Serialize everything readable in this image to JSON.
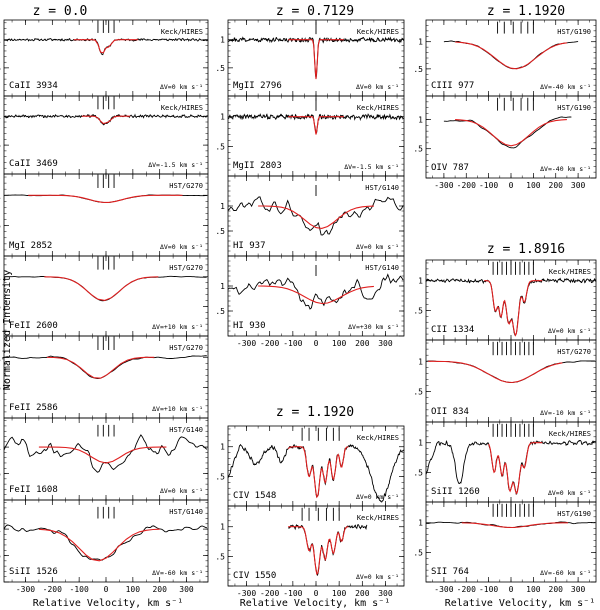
{
  "figure": {
    "ylabel": "Normalized Intensity",
    "xlabel": "Relative Velocity, km s⁻¹"
  },
  "colors": {
    "data": "#000000",
    "model": "#e02020",
    "axes": "#000000",
    "background": "#ffffff"
  },
  "chart_data": {
    "type": "line",
    "description_units": {
      "x": "km/s",
      "y": "normalized flux"
    },
    "columns": [
      {
        "redshift_label": "z = 0.0",
        "xlim": [
          -380,
          380
        ],
        "xticks": [
          -300,
          -200,
          -100,
          0,
          100,
          200,
          300
        ],
        "panels": [
          {
            "ion": "CaII 3934",
            "instrument": "Keck/HIRES",
            "dv": "ΔV=0 km s⁻¹",
            "ylim": [
              0,
              1.35
            ],
            "yticks": [
              0,
              0.5,
              1
            ],
            "ticks": [
              -30,
              -10,
              10,
              30
            ],
            "tick_y": 1.22,
            "noise": 0.025,
            "noise_scale": 4,
            "seed": 11,
            "abs": [
              [
                -15,
                0.25,
                10
              ],
              [
                10,
                0.12,
                10
              ]
            ],
            "model": [
              -120,
              120
            ],
            "model_step": 10
          },
          {
            "ion": "CaII 3469",
            "instrument": "Keck/HIRES",
            "dv": "ΔV=-1.5 km s⁻¹",
            "ylim": [
              0,
              1.35
            ],
            "yticks": [
              0,
              0.5,
              1
            ],
            "ticks": [
              -30,
              -10,
              10,
              30
            ],
            "tick_y": 1.22,
            "noise": 0.03,
            "noise_scale": 4,
            "seed": 12,
            "abs": [
              [
                -10,
                0.12,
                12
              ],
              [
                12,
                0.07,
                10
              ]
            ],
            "model": [
              -90,
              90
            ],
            "model_step": 10
          },
          {
            "ion": "MgI 2852",
            "instrument": "HST/G270",
            "dv": "ΔV=0 km s⁻¹",
            "ylim": [
              0,
              1.35
            ],
            "yticks": [
              0,
              0.5,
              1
            ],
            "ticks": [
              -30,
              -10,
              10,
              30
            ],
            "tick_y": 1.22,
            "noise": 0.01,
            "noise_scale": 40,
            "seed": 13,
            "abs": [
              [
                0,
                0.12,
                60
              ]
            ],
            "model": [
              -290,
              300
            ],
            "model_step": 25
          },
          {
            "ion": "FeII 2600",
            "instrument": "HST/G270",
            "dv": "ΔV=+10 km s⁻¹",
            "ylim": [
              0,
              1.35
            ],
            "yticks": [
              0,
              0.5,
              1
            ],
            "ticks": [
              -30,
              -10,
              10,
              30
            ],
            "tick_y": 1.22,
            "noise": 0.01,
            "noise_scale": 40,
            "seed": 14,
            "abs": [
              [
                -10,
                0.4,
                60
              ]
            ],
            "model": [
              -230,
              200
            ],
            "model_step": 25
          },
          {
            "ion": "FeII 2586",
            "instrument": "HST/G270",
            "dv": "ΔV=+10 km s⁻¹",
            "ylim": [
              0,
              1.35
            ],
            "yticks": [
              0,
              0.5,
              1
            ],
            "ticks": [
              -30,
              -10,
              10,
              30
            ],
            "tick_y": 1.22,
            "noise": 0.03,
            "noise_scale": 40,
            "seed": 15,
            "abs": [
              [
                -30,
                0.35,
                55
              ]
            ],
            "model": [
              -220,
              200
            ],
            "model_step": 25
          },
          {
            "ion": "FeII 1608",
            "instrument": "HST/G140",
            "dv": "ΔV=0 km s⁻¹",
            "ylim": [
              0,
              1.55
            ],
            "yticks": [
              0,
              0.5,
              1
            ],
            "ticks": [
              -30,
              -10,
              10,
              30
            ],
            "tick_y": 1.3,
            "noise": 0.3,
            "noise_scale": 35,
            "seed": 16,
            "abs": [
              [
                0,
                0.3,
                55
              ]
            ],
            "model": [
              -250,
              230
            ],
            "model_step": 25
          },
          {
            "ion": "SiII 1526",
            "instrument": "HST/G140",
            "dv": "ΔV=-60 km s⁻¹",
            "ylim": [
              0,
              1.55
            ],
            "yticks": [
              0,
              0.5,
              1
            ],
            "ticks": [
              -30,
              -10,
              10,
              30
            ],
            "tick_y": 1.3,
            "noise": 0.12,
            "noise_scale": 40,
            "seed": 17,
            "abs": [
              [
                -30,
                0.6,
                70
              ]
            ],
            "model": [
              -250,
              200
            ],
            "model_step": 25
          }
        ]
      },
      {
        "redshift_label": "z = 0.7129",
        "xlim": [
          -380,
          380
        ],
        "xticks": [
          -300,
          -200,
          -100,
          0,
          100,
          200,
          300
        ],
        "panels": [
          {
            "ion": "MgII 2796",
            "instrument": "Keck/HIRES",
            "dv": "ΔV=0 km s⁻¹",
            "ylim": [
              0,
              1.35
            ],
            "yticks": [
              0,
              0.5,
              1
            ],
            "ticks": [
              0
            ],
            "tick_y": 1.2,
            "noise": 0.05,
            "noise_scale": 4,
            "seed": 21,
            "abs": [
              [
                0,
                0.7,
                5
              ]
            ],
            "model": [
              -120,
              120
            ],
            "model_step": 5
          },
          {
            "ion": "MgII 2803",
            "instrument": "Keck/HIRES",
            "dv": "ΔV=-1.5 km s⁻¹",
            "ylim": [
              0,
              1.35
            ],
            "yticks": [
              0,
              0.5,
              1
            ],
            "ticks": [
              0
            ],
            "tick_y": 1.2,
            "noise": 0.05,
            "noise_scale": 4,
            "seed": 22,
            "abs": [
              [
                0,
                0.3,
                5
              ]
            ],
            "model": [
              -120,
              120
            ],
            "model_step": 5
          },
          {
            "ion": "HI 937",
            "instrument": "HST/G140",
            "dv": "ΔV=0 km s⁻¹",
            "ylim": [
              0,
              1.6
            ],
            "yticks": [
              0,
              0.5,
              1
            ],
            "ticks": [
              0
            ],
            "tick_y": 1.3,
            "noise": 0.28,
            "noise_scale": 30,
            "seed": 23,
            "abs": [
              [
                20,
                0.45,
                70
              ]
            ],
            "model": [
              -250,
              250
            ],
            "model_step": 25
          },
          {
            "ion": "HI 930",
            "instrument": "HST/G140",
            "dv": "ΔV=+30 km s⁻¹",
            "ylim": [
              0,
              1.6
            ],
            "yticks": [
              0,
              0.5,
              1
            ],
            "ticks": [
              0
            ],
            "tick_y": 1.3,
            "noise": 0.28,
            "noise_scale": 30,
            "seed": 24,
            "abs": [
              [
                30,
                0.35,
                80
              ]
            ],
            "model": [
              -250,
              250
            ],
            "model_step": 25
          }
        ]
      },
      {
        "redshift_label": "z = 1.1920",
        "xlim": [
          -380,
          380
        ],
        "xticks": [
          -300,
          -200,
          -100,
          0,
          100,
          200,
          300
        ],
        "panels": [
          {
            "ion": "CIV 1548",
            "instrument": "Keck/HIRES",
            "dv": "ΔV=0 km s⁻¹",
            "ylim": [
              0,
              1.35
            ],
            "yticks": [
              0,
              0.5,
              1
            ],
            "ticks": [
              -60,
              -30,
              10,
              45,
              75,
              100
            ],
            "tick_y": 1.2,
            "noise": 0.05,
            "noise_scale": 5,
            "seed": 31,
            "edge": "left",
            "abs": [
              [
                -260,
                0.3,
                25
              ],
              [
                -150,
                0.25,
                15
              ],
              [
                -30,
                0.5,
                10
              ],
              [
                5,
                0.85,
                12
              ],
              [
                40,
                0.6,
                10
              ],
              [
                75,
                0.55,
                10
              ],
              [
                110,
                0.35,
                8
              ],
              [
                280,
                0.9,
                40
              ]
            ],
            "model": [
              -120,
              140
            ],
            "model_step": 4
          },
          {
            "ion": "CIV 1550",
            "instrument": "Keck/HIRES",
            "dv": "ΔV=0 km s⁻¹",
            "ylim": [
              0,
              1.35
            ],
            "yticks": [
              0,
              0.5,
              1
            ],
            "ticks": [
              -60,
              -30,
              10,
              45,
              75,
              100
            ],
            "tick_y": 1.2,
            "noise": 0.05,
            "noise_scale": 5,
            "seed": 32,
            "range": [
              -120,
              220
            ],
            "abs": [
              [
                -30,
                0.4,
                10
              ],
              [
                5,
                0.8,
                12
              ],
              [
                40,
                0.55,
                10
              ],
              [
                75,
                0.45,
                10
              ],
              [
                110,
                0.25,
                8
              ]
            ],
            "model": [
              -120,
              140
            ],
            "model_step": 4
          }
        ]
      },
      {
        "redshift_label": "z = 1.1920",
        "xlim": [
          -380,
          380
        ],
        "xticks": [
          -300,
          -200,
          -100,
          0,
          100,
          200,
          300
        ],
        "panels": [
          {
            "ion": "CIII 977",
            "instrument": "HST/G190",
            "dv": "ΔV=-40 km s⁻¹",
            "ylim": [
              0,
              1.4
            ],
            "yticks": [
              0,
              0.5,
              1
            ],
            "ticks": [
              -60,
              -30,
              10,
              45,
              75,
              100
            ],
            "tick_y": 1.25,
            "noise": 0.02,
            "noise_scale": 40,
            "seed": 41,
            "range": [
              -300,
              300
            ],
            "abs": [
              [
                20,
                0.5,
                90
              ]
            ],
            "model": [
              -250,
              270
            ],
            "model_step": 25
          },
          {
            "ion": "OIV 787",
            "instrument": "HST/G190",
            "dv": "ΔV=-40 km s⁻¹",
            "ylim": [
              0,
              1.4
            ],
            "yticks": [
              0,
              0.5,
              1
            ],
            "ticks": [
              -60,
              -30,
              10,
              45,
              75,
              100
            ],
            "tick_y": 1.25,
            "noise": 0.06,
            "noise_scale": 60,
            "seed": 42,
            "range": [
              -300,
              270
            ],
            "abs": [
              [
                0,
                0.45,
                80
              ]
            ],
            "model": [
              -250,
              270
            ],
            "model_step": 25
          }
        ]
      },
      {
        "redshift_label": "z = 1.8916",
        "xlim": [
          -380,
          380
        ],
        "xticks": [
          -300,
          -200,
          -100,
          0,
          100,
          200,
          300
        ],
        "panels": [
          {
            "ion": "CII 1334",
            "instrument": "Keck/HIRES",
            "dv": "ΔV=0 km s⁻¹",
            "ylim": [
              0,
              1.35
            ],
            "yticks": [
              0,
              0.5,
              1
            ],
            "ticks": [
              -80,
              -60,
              -40,
              -20,
              0,
              20,
              40,
              60,
              80,
              100
            ],
            "tick_y": 1.2,
            "noise": 0.04,
            "noise_scale": 5,
            "seed": 51,
            "abs": [
              [
                -70,
                0.5,
                10
              ],
              [
                -45,
                0.6,
                10
              ],
              [
                -10,
                0.7,
                12
              ],
              [
                20,
                0.92,
                14
              ],
              [
                60,
                0.35,
                10
              ]
            ],
            "model": [
              -120,
              140
            ],
            "model_step": 4
          },
          {
            "ion": "OII 834",
            "instrument": "HST/G270",
            "dv": "ΔV=-10 km s⁻¹",
            "ylim": [
              0,
              1.35
            ],
            "yticks": [
              0,
              0.5,
              1
            ],
            "ticks": [
              -80,
              -60,
              -40,
              -20,
              0,
              20,
              40,
              60,
              80,
              100
            ],
            "tick_y": 1.2,
            "noise": 0.01,
            "noise_scale": 40,
            "seed": 52,
            "abs": [
              [
                0,
                0.35,
                100
              ]
            ],
            "model": [
              -370,
              230
            ],
            "model_step": 25
          },
          {
            "ion": "SiII 1260",
            "instrument": "Keck/HIRES",
            "dv": "ΔV=0 km s⁻¹",
            "ylim": [
              0,
              1.35
            ],
            "yticks": [
              0,
              0.5,
              1
            ],
            "ticks": [
              -80,
              -60,
              -40,
              -20,
              0,
              20,
              40,
              60,
              80,
              100
            ],
            "tick_y": 1.2,
            "noise": 0.05,
            "noise_scale": 6,
            "seed": 53,
            "edge": "left",
            "abs": [
              [
                -230,
                0.7,
                18
              ],
              [
                -75,
                0.5,
                10
              ],
              [
                -40,
                0.55,
                10
              ],
              [
                -5,
                0.8,
                12
              ],
              [
                25,
                0.85,
                14
              ],
              [
                60,
                0.4,
                10
              ]
            ],
            "model": [
              -100,
              140
            ],
            "model_step": 4
          },
          {
            "ion": "SII 764",
            "instrument": "HST/G190",
            "dv": "ΔV=-60 km s⁻¹",
            "ylim": [
              0,
              1.35
            ],
            "yticks": [
              0,
              0.5,
              1
            ],
            "ticks": [
              -80,
              -60,
              -40,
              -20,
              0,
              20,
              40,
              60,
              80,
              100
            ],
            "tick_y": 1.2,
            "noise": 0.02,
            "noise_scale": 40,
            "seed": 54,
            "abs": [
              [
                0,
                0.08,
                80
              ]
            ],
            "model": [
              -220,
              260
            ],
            "model_step": 25
          }
        ]
      }
    ]
  }
}
